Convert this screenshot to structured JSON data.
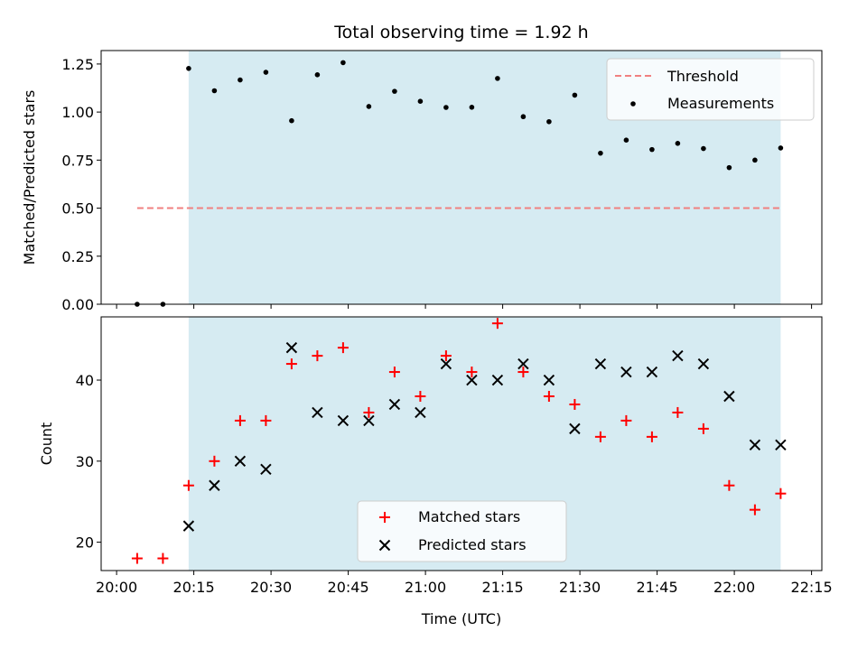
{
  "chart_data": {
    "title": "Total observing time = 1.92 h",
    "xlabel": "Time (UTC)",
    "x_ticks": [
      "20:00",
      "20:15",
      "20:30",
      "20:45",
      "21:00",
      "21:15",
      "21:30",
      "21:45",
      "22:00",
      "22:15"
    ],
    "x_range": [
      "19:57",
      "22:17"
    ],
    "shaded_interval": {
      "start": "20:14",
      "end": "22:09",
      "color": "#add8e6"
    },
    "times": [
      "20:04",
      "20:09",
      "20:14",
      "20:19",
      "20:24",
      "20:29",
      "20:34",
      "20:39",
      "20:44",
      "20:49",
      "20:54",
      "20:59",
      "21:04",
      "21:09",
      "21:14",
      "21:19",
      "21:24",
      "21:29",
      "21:34",
      "21:39",
      "21:44",
      "21:49",
      "21:54",
      "21:59",
      "22:04",
      "22:09"
    ],
    "top_panel": {
      "type": "scatter",
      "ylabel": "Matched/Predicted stars",
      "ylim": [
        0,
        1.32
      ],
      "y_ticks": [
        "0.00",
        "0.25",
        "0.50",
        "0.75",
        "1.00",
        "1.25"
      ],
      "threshold": {
        "name": "Threshold",
        "value": 0.5,
        "x_start": "20:04",
        "x_end": "22:09",
        "color": "#f08080",
        "style": "dashed"
      },
      "series": [
        {
          "name": "Measurements",
          "color": "#000000",
          "marker": "dot",
          "values": [
            0.0,
            0.0,
            1.227,
            1.111,
            1.167,
            1.207,
            0.955,
            1.194,
            1.257,
            1.029,
            1.108,
            1.056,
            1.024,
            1.025,
            1.175,
            0.976,
            0.95,
            1.088,
            0.786,
            0.854,
            0.805,
            0.837,
            0.81,
            0.711,
            0.75,
            0.813
          ]
        }
      ],
      "legend_position": "top-right"
    },
    "bottom_panel": {
      "type": "scatter",
      "ylabel": "Count",
      "ylim": [
        16.5,
        47.8
      ],
      "y_ticks": [
        "20",
        "30",
        "40"
      ],
      "series": [
        {
          "name": "Matched stars",
          "color": "#ff0000",
          "marker": "plus",
          "values": [
            18,
            18,
            27,
            30,
            35,
            35,
            42,
            43,
            44,
            36,
            41,
            38,
            43,
            41,
            47,
            41,
            38,
            37,
            33,
            35,
            33,
            36,
            34,
            27,
            24,
            26
          ]
        },
        {
          "name": "Predicted stars",
          "color": "#000000",
          "marker": "x",
          "values": [
            null,
            null,
            22,
            27,
            30,
            29,
            44,
            36,
            35,
            35,
            37,
            36,
            42,
            40,
            40,
            42,
            40,
            34,
            42,
            41,
            41,
            43,
            42,
            38,
            32,
            32
          ]
        }
      ],
      "legend_position": "lower-center"
    }
  }
}
